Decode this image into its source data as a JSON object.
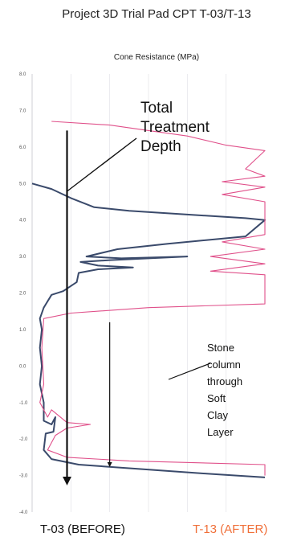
{
  "chart_data": {
    "type": "line",
    "title": "Project 3D Trial Pad CPT T-03/T-13",
    "xlabel": "Cone Resistance (MPa)",
    "ylabel": "",
    "ylim": [
      -4.0,
      8.0
    ],
    "yticks": [
      "8.0",
      "7.0",
      "6.0",
      "5.0",
      "4.0",
      "3.0",
      "2.0",
      "1.0",
      "0.0",
      "-1.0",
      "-2.0",
      "-3.0",
      "-4.0"
    ],
    "xlim": [
      0,
      6
    ],
    "grid": true,
    "legend": "bottom",
    "series": [
      {
        "name": "T-03 (BEFORE)",
        "color": "#3a4a6b",
        "points": [
          [
            0.0,
            5.0
          ],
          [
            0.5,
            4.85
          ],
          [
            1.0,
            4.6
          ],
          [
            1.6,
            4.35
          ],
          [
            2.5,
            4.25
          ],
          [
            4.0,
            4.15
          ],
          [
            5.5,
            4.05
          ],
          [
            6.0,
            4.0
          ],
          [
            5.5,
            3.55
          ],
          [
            3.5,
            3.35
          ],
          [
            2.2,
            3.2
          ],
          [
            1.4,
            3.0
          ],
          [
            2.3,
            2.95
          ],
          [
            4.0,
            3.0
          ],
          [
            2.0,
            2.9
          ],
          [
            1.25,
            2.85
          ],
          [
            1.7,
            2.75
          ],
          [
            2.6,
            2.7
          ],
          [
            1.7,
            2.65
          ],
          [
            1.2,
            2.55
          ],
          [
            1.15,
            2.3
          ],
          [
            0.8,
            2.05
          ],
          [
            0.5,
            1.95
          ],
          [
            0.3,
            1.6
          ],
          [
            0.2,
            1.3
          ],
          [
            0.25,
            1.0
          ],
          [
            0.2,
            0.5
          ],
          [
            0.25,
            0.0
          ],
          [
            0.2,
            -0.5
          ],
          [
            0.3,
            -1.0
          ],
          [
            0.3,
            -1.5
          ],
          [
            0.5,
            -1.6
          ],
          [
            0.6,
            -1.4
          ],
          [
            0.55,
            -1.8
          ],
          [
            0.35,
            -1.85
          ],
          [
            0.3,
            -2.3
          ],
          [
            0.5,
            -2.55
          ],
          [
            1.2,
            -2.7
          ],
          [
            2.5,
            -2.8
          ],
          [
            4.5,
            -2.95
          ],
          [
            6.0,
            -3.05
          ]
        ]
      },
      {
        "name": "T-13 (AFTER)",
        "color": "#e0508a",
        "points": [
          [
            0.5,
            6.7
          ],
          [
            2.0,
            6.6
          ],
          [
            3.0,
            6.45
          ],
          [
            4.0,
            6.3
          ],
          [
            5.0,
            6.05
          ],
          [
            6.0,
            5.9
          ],
          [
            5.5,
            5.4
          ],
          [
            6.0,
            5.2
          ],
          [
            4.9,
            5.05
          ],
          [
            6.0,
            4.9
          ],
          [
            4.9,
            4.7
          ],
          [
            6.0,
            4.5
          ],
          [
            6.0,
            3.6
          ],
          [
            4.9,
            3.4
          ],
          [
            6.0,
            3.2
          ],
          [
            4.6,
            3.0
          ],
          [
            6.0,
            2.8
          ],
          [
            4.6,
            2.6
          ],
          [
            6.0,
            2.5
          ],
          [
            6.0,
            1.7
          ],
          [
            3.0,
            1.6
          ],
          [
            1.0,
            1.45
          ],
          [
            0.3,
            1.3
          ],
          [
            0.25,
            0.5
          ],
          [
            0.3,
            -0.5
          ],
          [
            0.2,
            -1.0
          ],
          [
            0.4,
            -1.4
          ],
          [
            0.5,
            -1.2
          ],
          [
            0.9,
            -1.55
          ],
          [
            1.5,
            -1.6
          ],
          [
            0.9,
            -1.7
          ],
          [
            0.6,
            -1.9
          ],
          [
            0.4,
            -2.3
          ],
          [
            0.9,
            -2.5
          ],
          [
            2.5,
            -2.6
          ],
          [
            6.0,
            -2.7
          ],
          [
            6.0,
            -3.0
          ]
        ]
      }
    ],
    "annotations": [
      {
        "text": [
          "Total",
          "Treatment",
          "Depth"
        ]
      },
      {
        "text": [
          "Stone",
          "column",
          "through",
          "Soft",
          "Clay",
          "Layer"
        ]
      }
    ]
  },
  "legend": {
    "before": "T-03 (BEFORE)",
    "after": "T-13 (AFTER)"
  }
}
